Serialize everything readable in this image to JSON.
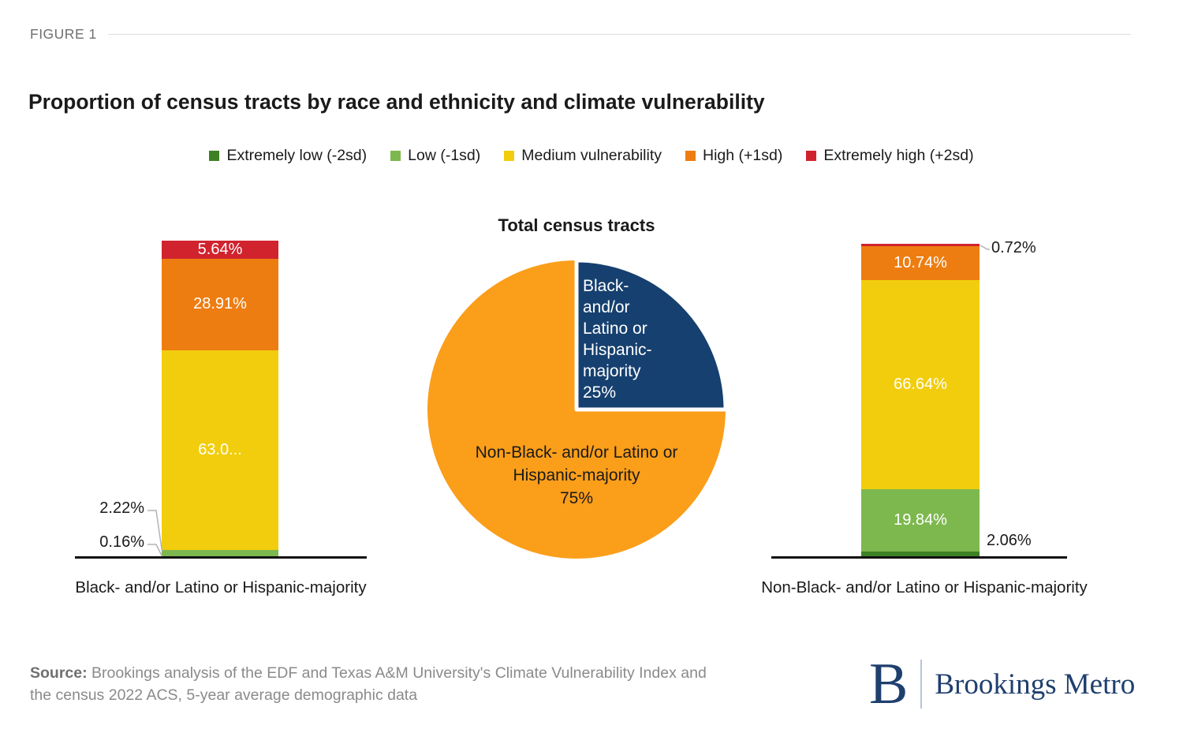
{
  "figure_label": "FIGURE 1",
  "title": "Proportion of census tracts by race and ethnicity and climate vulnerability",
  "legend": {
    "items": [
      {
        "name": "Extremely low (-2sd)",
        "color": "#3d8124"
      },
      {
        "name": "Low (-1sd)",
        "color": "#7db84e"
      },
      {
        "name": "Medium vulnerability",
        "color": "#f2cd0d"
      },
      {
        "name": "High (+1sd)",
        "color": "#ee7d11"
      },
      {
        "name": "Extremely high (+2sd)",
        "color": "#d1232e"
      }
    ]
  },
  "chart_data": {
    "type": "combo",
    "charts": [
      {
        "type": "bar",
        "subtype": "stacked-percent",
        "category": "Black- and/or Latino or Hispanic-majority",
        "segments": [
          {
            "name": "Extremely high (+2sd)",
            "value": 5.64,
            "label": "5.64%",
            "label_position": "inside"
          },
          {
            "name": "High (+1sd)",
            "value": 28.91,
            "label": "28.91%",
            "label_position": "inside"
          },
          {
            "name": "Medium vulnerability",
            "value": 63.07,
            "label": "63.0...",
            "label_position": "inside"
          },
          {
            "name": "Low (-1sd)",
            "value": 2.22,
            "label": "2.22%",
            "label_position": "callout"
          },
          {
            "name": "Extremely low (-2sd)",
            "value": 0.16,
            "label": "0.16%",
            "label_position": "callout"
          }
        ]
      },
      {
        "type": "pie",
        "title": "Total census tracts",
        "slices": [
          {
            "name": "Black- and/or Latino or Hispanic-majority",
            "value": 25,
            "color": "#16406f",
            "label": "Black-\nand/or\nLatino or\nHispanic-\nmajority\n25%"
          },
          {
            "name": "Non-Black- and/or Latino or Hispanic-majority",
            "value": 75,
            "color": "#fb9e1a",
            "label": "Non-Black- and/or Latino or\nHispanic-majority\n75%"
          }
        ]
      },
      {
        "type": "bar",
        "subtype": "stacked-percent",
        "category": "Non-Black- and/or Latino or Hispanic-majority",
        "segments": [
          {
            "name": "Extremely high (+2sd)",
            "value": 0.72,
            "label": "0.72%",
            "label_position": "callout"
          },
          {
            "name": "High (+1sd)",
            "value": 10.74,
            "label": "10.74%",
            "label_position": "inside"
          },
          {
            "name": "Medium vulnerability",
            "value": 66.64,
            "label": "66.64%",
            "label_position": "inside"
          },
          {
            "name": "Low (-1sd)",
            "value": 19.84,
            "label": "19.84%",
            "label_position": "inside"
          },
          {
            "name": "Extremely low (-2sd)",
            "value": 2.06,
            "label": "2.06%",
            "label_position": "callout"
          }
        ]
      }
    ]
  },
  "source": {
    "prefix": "Source:",
    "text": "Brookings analysis of the EDF and Texas A&M University's Climate Vulnerability Index and the census 2022 ACS, 5-year average demographic data"
  },
  "logo": {
    "mark": "B",
    "name": "Brookings Metro",
    "color": "#1f3f6e"
  }
}
